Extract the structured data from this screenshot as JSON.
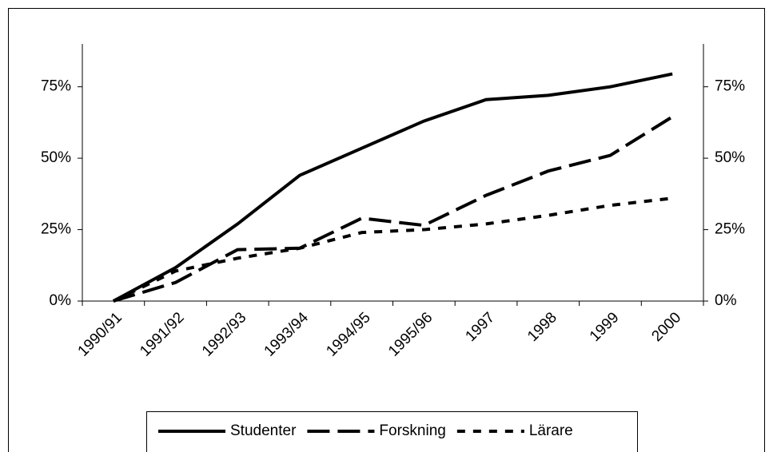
{
  "chart_data": {
    "type": "line",
    "categories": [
      "1990/91",
      "1991/92",
      "1992/93",
      "1993/94",
      "1994/95",
      "1995/96",
      "1997",
      "1998",
      "1999",
      "2000"
    ],
    "series": [
      {
        "name": "Studenter",
        "color": "#000000",
        "dash": "solid",
        "values": [
          0,
          11.7,
          27,
          44,
          53.5,
          63,
          70.5,
          72,
          75,
          79.5
        ]
      },
      {
        "name": "Forskning",
        "color": "#000000",
        "dash": "long",
        "values": [
          0,
          6.5,
          18,
          18.5,
          29,
          26.5,
          37,
          45.5,
          51,
          64.5
        ]
      },
      {
        "name": "Lärare",
        "color": "#000000",
        "dash": "short",
        "values": [
          0,
          10.5,
          15,
          18.5,
          24,
          25,
          27,
          30,
          33.5,
          36
        ]
      }
    ],
    "ylim": [
      0,
      90
    ],
    "yticks": [
      {
        "value": 0,
        "label": "0%"
      },
      {
        "value": 25,
        "label": "25%"
      },
      {
        "value": 50,
        "label": "50%"
      },
      {
        "value": 75,
        "label": "75%"
      }
    ],
    "y2lim": [
      0,
      90
    ],
    "y2ticks": [
      {
        "value": 0,
        "label": "0%"
      },
      {
        "value": 25,
        "label": "25%"
      },
      {
        "value": 50,
        "label": "50%"
      },
      {
        "value": 75,
        "label": "75%"
      }
    ],
    "legend": "bottom"
  }
}
